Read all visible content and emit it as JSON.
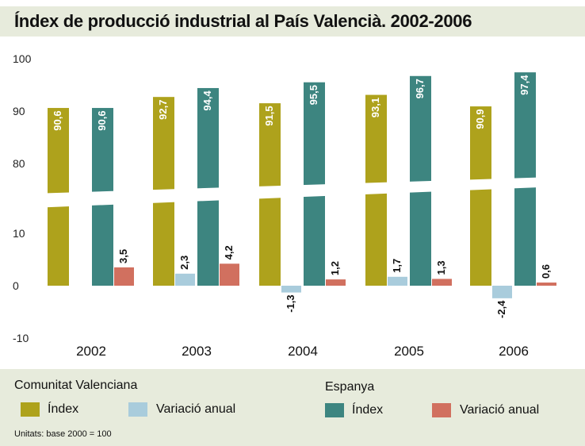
{
  "title": "Índex de producció industrial al País Valencià. 2002-2006",
  "colors": {
    "cv_index": "#aea21c",
    "cv_var": "#a9ccdc",
    "es_index": "#3d8580",
    "es_var": "#d1705f"
  },
  "legend": {
    "group_cv": "Comunitat Valenciana",
    "group_es": "Espanya",
    "cv_index": "Índex",
    "cv_var": "Variació anual",
    "es_index": "Índex",
    "es_var": "Variació anual",
    "footnote": "Unitats: base 2000 = 100"
  },
  "chart_data": {
    "type": "bar",
    "categories": [
      "2002",
      "2003",
      "2004",
      "2005",
      "2006"
    ],
    "series": [
      {
        "name": "Comunitat Valenciana — Índex",
        "values": [
          90.6,
          92.7,
          91.5,
          93.1,
          90.9
        ],
        "labels": [
          "90,6",
          "92,7",
          "91,5",
          "93,1",
          "90,9"
        ]
      },
      {
        "name": "Comunitat Valenciana — Variació anual",
        "values": [
          null,
          2.3,
          -1.3,
          1.7,
          -2.4
        ],
        "labels": [
          "",
          "2,3",
          "-1,3",
          "1,7",
          "-2,4"
        ]
      },
      {
        "name": "Espanya — Índex",
        "values": [
          90.6,
          94.4,
          95.5,
          96.7,
          97.4
        ],
        "labels": [
          "90,6",
          "94,4",
          "95,5",
          "96,7",
          "97,4"
        ]
      },
      {
        "name": "Espanya — Variació anual",
        "values": [
          3.5,
          4.2,
          1.2,
          1.3,
          0.6
        ],
        "labels": [
          "3,5",
          "4,2",
          "1,2",
          "1,3",
          "0,6"
        ]
      }
    ],
    "y_ticks_upper": [
      "100",
      "90",
      "80"
    ],
    "y_ticks_lower": [
      "10",
      "0",
      "-10"
    ],
    "ylim_upper": [
      75,
      100
    ],
    "ylim_lower": [
      -10,
      15
    ],
    "broken_axis": true,
    "legend_position": "bottom"
  }
}
